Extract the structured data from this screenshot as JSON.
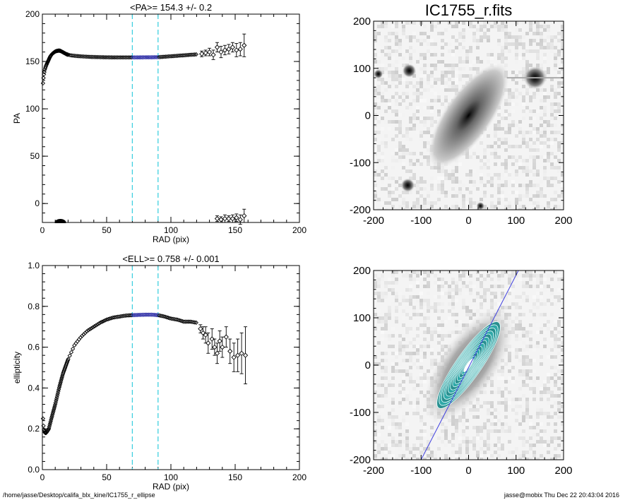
{
  "chart_data": [
    {
      "id": "pa",
      "type": "scatter",
      "title": "<PA>= 154.3 +/-   0.2",
      "xlabel": "RAD (pix)",
      "ylabel": "PA",
      "xlim": [
        0,
        200
      ],
      "ylim": [
        -20,
        200
      ],
      "xticks": [
        "0",
        "50",
        "100",
        "150",
        "200"
      ],
      "yticks": [
        "0",
        "50",
        "100",
        "150",
        "200"
      ],
      "ytick_values": [
        0,
        50,
        100,
        150,
        200
      ],
      "vlines": [
        70,
        90
      ],
      "highlight_range": [
        70,
        90
      ],
      "curve": [
        [
          0.5,
          127
        ],
        [
          1,
          135
        ],
        [
          2,
          142
        ],
        [
          3,
          146
        ],
        [
          4,
          149
        ],
        [
          5,
          152
        ],
        [
          6,
          155
        ],
        [
          7,
          157
        ],
        [
          8,
          158.5
        ],
        [
          9,
          159.5
        ],
        [
          10,
          160.5
        ],
        [
          11,
          161
        ],
        [
          12,
          161.3
        ],
        [
          13,
          161.5
        ],
        [
          14,
          161.2
        ],
        [
          15,
          160.5
        ],
        [
          17,
          159
        ],
        [
          19,
          157.5
        ],
        [
          22,
          156.5
        ],
        [
          25,
          156
        ],
        [
          30,
          155.4
        ],
        [
          35,
          155
        ],
        [
          40,
          154.7
        ],
        [
          50,
          154.4
        ],
        [
          60,
          154.3
        ],
        [
          70,
          154.3
        ],
        [
          80,
          154.4
        ],
        [
          90,
          154.5
        ],
        [
          95,
          155
        ],
        [
          100,
          155.5
        ],
        [
          105,
          156
        ],
        [
          110,
          156.5
        ],
        [
          115,
          157
        ],
        [
          120,
          157.5
        ]
      ],
      "points": [
        [
          124,
          158
        ],
        [
          127,
          159
        ],
        [
          130,
          160
        ],
        [
          133,
          157
        ],
        [
          136,
          165
        ],
        [
          139,
          160
        ],
        [
          142,
          162
        ],
        [
          145,
          163
        ],
        [
          148,
          165
        ],
        [
          151,
          162
        ],
        [
          154,
          163
        ],
        [
          157,
          167
        ]
      ],
      "errors": [
        3,
        3,
        4,
        5,
        5,
        6,
        5,
        5,
        5,
        7,
        7,
        12
      ],
      "low_points": [
        [
          136,
          -16
        ],
        [
          139,
          -17
        ],
        [
          142,
          -16
        ],
        [
          145,
          -16
        ],
        [
          148,
          -16
        ],
        [
          151,
          -15
        ],
        [
          154,
          -17
        ],
        [
          157,
          -13
        ]
      ],
      "low_errors": [
        3,
        3,
        4,
        3,
        4,
        4,
        5,
        7
      ],
      "blob": [
        14,
        -21
      ]
    },
    {
      "id": "ell",
      "type": "scatter",
      "title": "<ELL>= 0.758 +/-  0.001",
      "xlabel": "RAD (pix)",
      "ylabel": "ellipticity",
      "xlim": [
        0,
        200
      ],
      "ylim": [
        0,
        1
      ],
      "xticks": [
        "0",
        "50",
        "100",
        "150",
        "200"
      ],
      "yticks": [
        "0.0",
        "0.2",
        "0.4",
        "0.6",
        "0.8",
        "1.0"
      ],
      "ytick_values": [
        0,
        0.2,
        0.4,
        0.6,
        0.8,
        1.0
      ],
      "vlines": [
        70,
        90
      ],
      "highlight_range": [
        70,
        90
      ],
      "curve": [
        [
          0.5,
          0.25
        ],
        [
          1,
          0.2
        ],
        [
          2,
          0.18
        ],
        [
          3,
          0.18
        ],
        [
          5,
          0.2
        ],
        [
          7,
          0.25
        ],
        [
          10,
          0.32
        ],
        [
          13,
          0.4
        ],
        [
          16,
          0.47
        ],
        [
          20,
          0.54
        ],
        [
          25,
          0.61
        ],
        [
          30,
          0.65
        ],
        [
          35,
          0.68
        ],
        [
          40,
          0.7
        ],
        [
          45,
          0.72
        ],
        [
          50,
          0.735
        ],
        [
          55,
          0.745
        ],
        [
          60,
          0.75
        ],
        [
          65,
          0.755
        ],
        [
          70,
          0.757
        ],
        [
          75,
          0.758
        ],
        [
          80,
          0.759
        ],
        [
          85,
          0.759
        ],
        [
          90,
          0.757
        ],
        [
          95,
          0.75
        ],
        [
          100,
          0.74
        ],
        [
          105,
          0.735
        ],
        [
          110,
          0.725
        ],
        [
          115,
          0.725
        ],
        [
          120,
          0.72
        ]
      ],
      "points": [
        [
          123,
          0.69
        ],
        [
          125,
          0.67
        ],
        [
          127,
          0.66
        ],
        [
          129,
          0.62
        ],
        [
          132,
          0.64
        ],
        [
          134,
          0.6
        ],
        [
          136,
          0.57
        ],
        [
          138,
          0.63
        ],
        [
          140,
          0.6
        ],
        [
          143,
          0.65
        ],
        [
          146,
          0.58
        ],
        [
          149,
          0.55
        ],
        [
          152,
          0.56
        ],
        [
          155,
          0.57
        ],
        [
          158,
          0.56
        ]
      ],
      "errors": [
        0.02,
        0.03,
        0.04,
        0.05,
        0.05,
        0.04,
        0.05,
        0.05,
        0.05,
        0.05,
        0.06,
        0.07,
        0.08,
        0.1,
        0.14
      ]
    },
    {
      "id": "img",
      "type": "image",
      "title": "IC1755_r.fits",
      "xlim": [
        -200,
        200
      ],
      "ylim": [
        -200,
        200
      ],
      "xticks": [
        "-200",
        "-100",
        "0",
        "100",
        "200"
      ],
      "yticks": [
        "-200",
        "-100",
        "0",
        "100",
        "200"
      ],
      "galaxy_pa_deg": 154.3,
      "stars": [
        [
          -125,
          95,
          12
        ],
        [
          140,
          80,
          20
        ],
        [
          -190,
          88,
          8
        ],
        [
          -128,
          -148,
          12
        ],
        [
          25,
          -192,
          7
        ]
      ]
    },
    {
      "id": "model",
      "type": "image",
      "title": "",
      "xlim": [
        -200,
        200
      ],
      "ylim": [
        -200,
        200
      ],
      "xticks": [
        "-200",
        "-100",
        "0",
        "100",
        "200"
      ],
      "yticks": [
        "-200",
        "-100",
        "0",
        "100",
        "200"
      ],
      "galaxy_pa_deg": 154.3,
      "ellipticity": 0.758,
      "major_axis_line": [
        [
          -100,
          -200
        ],
        [
          105,
          200
        ]
      ]
    }
  ],
  "footer": {
    "path": "/home/jasse/Desktop/califa_blx_kine/IC1755_r_ellipse",
    "user_time": "jasse@mobix  Thu Dec 22 20:43:04 2016"
  },
  "colors": {
    "axis": "#000000",
    "vline": "#40d0e0",
    "highlight": "#2020a0",
    "major_axis_line": "#4040e0",
    "contour_fill": "#30a8a8"
  }
}
